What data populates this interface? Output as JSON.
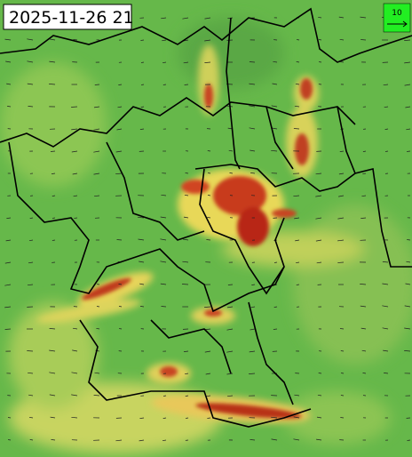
{
  "timestamp": "2025-11-26 21",
  "legend": {
    "label": "10"
  }
}
